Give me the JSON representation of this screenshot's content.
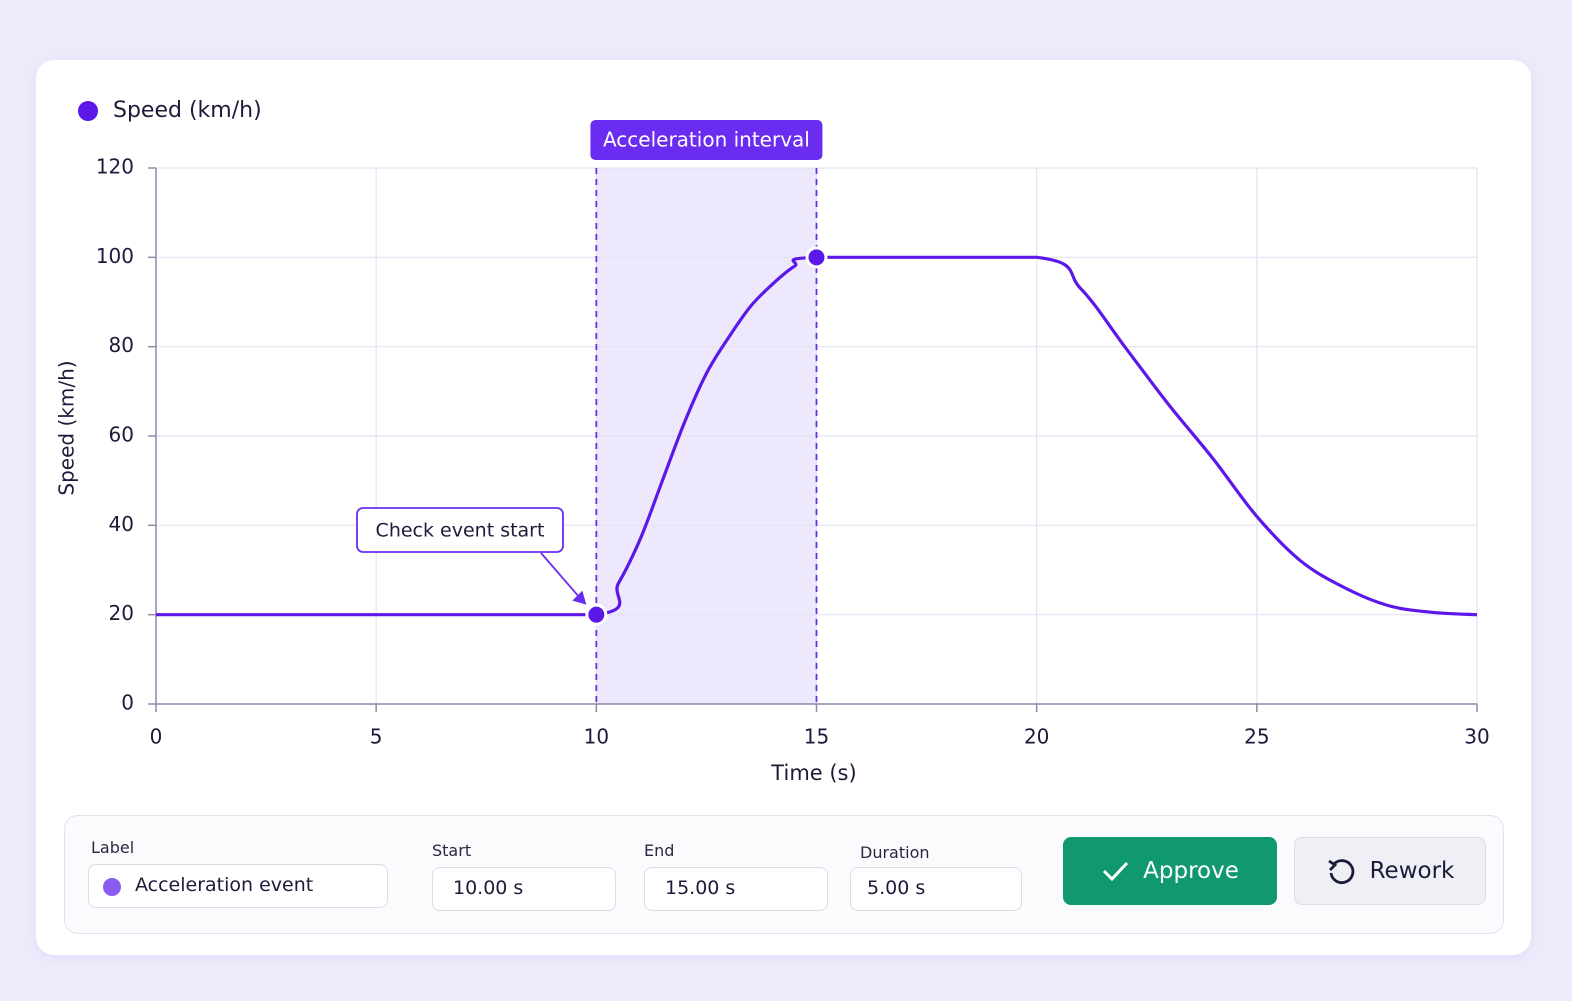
{
  "chart_data": {
    "type": "line",
    "x_label": "Time (s)",
    "y_label": "Speed (km/h)",
    "x": [
      0,
      5,
      10,
      10.5,
      11,
      11.5,
      12,
      12.5,
      13,
      13.5,
      14,
      14.5,
      15,
      20,
      21,
      22,
      23,
      24,
      25,
      26,
      27,
      28,
      29,
      30
    ],
    "series": [
      {
        "name": "Speed (km/h)",
        "color": "#5b18e8",
        "values": [
          20,
          20,
          20,
          27,
          37,
          50,
          63,
          74,
          82,
          89,
          94,
          98,
          100,
          100,
          93,
          80,
          67,
          55,
          42,
          32,
          26,
          22,
          20.5,
          20
        ]
      }
    ],
    "xlim": [
      0,
      30
    ],
    "xticks": [
      0,
      5,
      10,
      15,
      20,
      25,
      30
    ],
    "ylim": [
      0,
      120
    ],
    "yticks": [
      0,
      20,
      40,
      60,
      80,
      100,
      120
    ],
    "grid": true,
    "legend": "top-left",
    "interval": {
      "label": "Acceleration interval",
      "start": 10,
      "end": 15,
      "color": "#6a2cf0"
    },
    "annotation": {
      "text": "Check event start",
      "x": 10,
      "y": 20
    }
  },
  "form": {
    "label_title": "Label",
    "label_value": "Acceleration event",
    "start_title": "Start",
    "start_value": "10.00 s",
    "end_title": "End",
    "end_value": "15.00 s",
    "duration_title": "Duration",
    "duration_value": "5.00 s",
    "approve": "Approve",
    "rework": "Rework"
  }
}
